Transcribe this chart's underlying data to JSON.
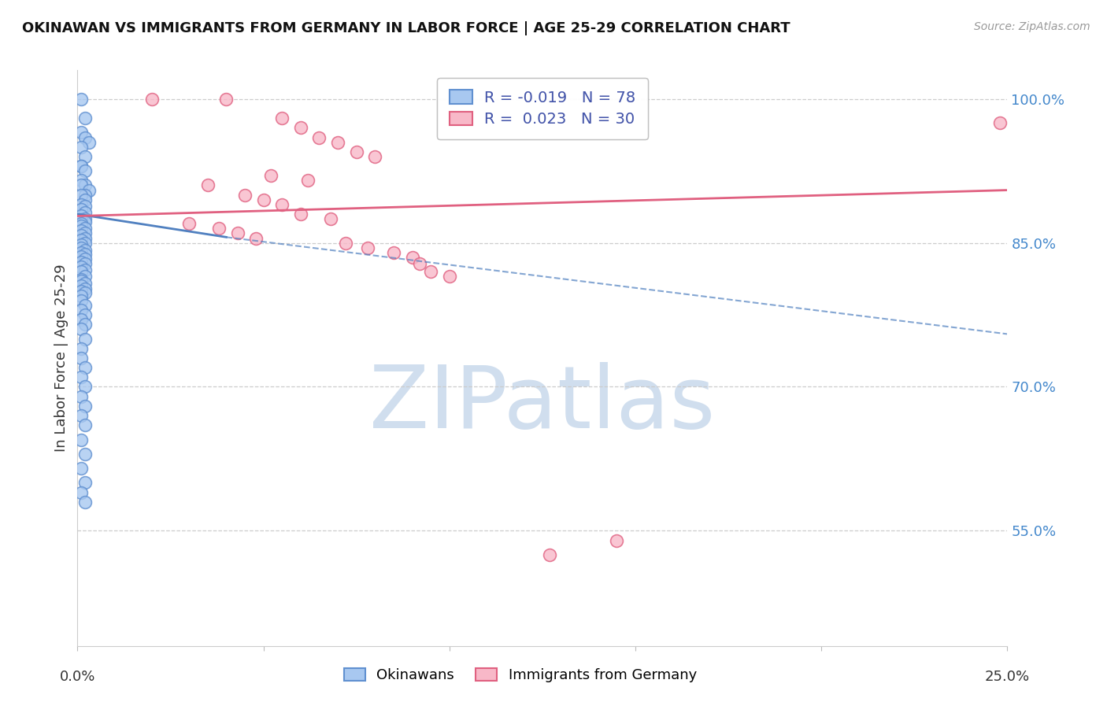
{
  "title": "OKINAWAN VS IMMIGRANTS FROM GERMANY IN LABOR FORCE | AGE 25-29 CORRELATION CHART",
  "source": "Source: ZipAtlas.com",
  "ylabel": "In Labor Force | Age 25-29",
  "ytick_labels": [
    "100.0%",
    "85.0%",
    "70.0%",
    "55.0%"
  ],
  "ytick_values": [
    1.0,
    0.85,
    0.7,
    0.55
  ],
  "xlim": [
    0.0,
    0.25
  ],
  "ylim": [
    0.43,
    1.03
  ],
  "legend_blue_r": "-0.019",
  "legend_blue_n": "78",
  "legend_pink_r": "0.023",
  "legend_pink_n": "30",
  "blue_fill": "#A8C8F0",
  "blue_edge": "#6090D0",
  "pink_fill": "#F8B8C8",
  "pink_edge": "#E06080",
  "blue_trend_color": "#5080C0",
  "pink_trend_color": "#E06080",
  "watermark_color": "#D0DEEE",
  "grid_color": "#CCCCCC",
  "right_axis_color": "#4488CC",
  "watermark": "ZIPatlas",
  "blue_scatter_x": [
    0.001,
    0.002,
    0.001,
    0.002,
    0.003,
    0.001,
    0.002,
    0.001,
    0.001,
    0.002,
    0.001,
    0.002,
    0.001,
    0.003,
    0.002,
    0.001,
    0.002,
    0.001,
    0.002,
    0.001,
    0.002,
    0.001,
    0.002,
    0.001,
    0.002,
    0.001,
    0.001,
    0.002,
    0.001,
    0.002,
    0.001,
    0.002,
    0.001,
    0.002,
    0.001,
    0.001,
    0.002,
    0.001,
    0.002,
    0.001,
    0.002,
    0.001,
    0.002,
    0.001,
    0.002,
    0.001,
    0.002,
    0.001,
    0.001,
    0.002,
    0.001,
    0.002,
    0.001,
    0.002,
    0.001,
    0.001,
    0.002,
    0.001,
    0.002,
    0.001,
    0.002,
    0.001,
    0.002,
    0.001,
    0.001,
    0.002,
    0.001,
    0.002,
    0.001,
    0.002,
    0.001,
    0.002,
    0.001,
    0.002,
    0.001,
    0.002,
    0.001,
    0.002
  ],
  "blue_scatter_y": [
    1.0,
    0.98,
    0.965,
    0.96,
    0.955,
    0.95,
    0.94,
    0.93,
    0.93,
    0.925,
    0.915,
    0.91,
    0.91,
    0.905,
    0.9,
    0.9,
    0.895,
    0.89,
    0.888,
    0.885,
    0.882,
    0.878,
    0.875,
    0.874,
    0.872,
    0.87,
    0.868,
    0.865,
    0.863,
    0.86,
    0.858,
    0.855,
    0.853,
    0.85,
    0.848,
    0.845,
    0.842,
    0.84,
    0.838,
    0.836,
    0.833,
    0.83,
    0.828,
    0.825,
    0.822,
    0.82,
    0.815,
    0.812,
    0.81,
    0.808,
    0.805,
    0.802,
    0.8,
    0.798,
    0.795,
    0.79,
    0.785,
    0.78,
    0.775,
    0.77,
    0.765,
    0.76,
    0.75,
    0.74,
    0.73,
    0.72,
    0.71,
    0.7,
    0.69,
    0.68,
    0.67,
    0.66,
    0.645,
    0.63,
    0.615,
    0.6,
    0.59,
    0.58
  ],
  "pink_scatter_x": [
    0.02,
    0.04,
    0.055,
    0.06,
    0.065,
    0.07,
    0.075,
    0.08,
    0.052,
    0.062,
    0.035,
    0.045,
    0.05,
    0.055,
    0.06,
    0.068,
    0.03,
    0.038,
    0.043,
    0.048,
    0.072,
    0.078,
    0.085,
    0.09,
    0.092,
    0.095,
    0.1,
    0.127,
    0.145,
    0.248
  ],
  "pink_scatter_y": [
    1.0,
    1.0,
    0.98,
    0.97,
    0.96,
    0.955,
    0.945,
    0.94,
    0.92,
    0.915,
    0.91,
    0.9,
    0.895,
    0.89,
    0.88,
    0.875,
    0.87,
    0.865,
    0.86,
    0.855,
    0.85,
    0.845,
    0.84,
    0.835,
    0.828,
    0.82,
    0.815,
    0.525,
    0.54,
    0.975
  ],
  "blue_trendline_x": [
    0.0,
    0.25
  ],
  "blue_trendline_y": [
    0.88,
    0.755
  ],
  "pink_trendline_x": [
    0.0,
    0.25
  ],
  "pink_trendline_y": [
    0.878,
    0.905
  ]
}
